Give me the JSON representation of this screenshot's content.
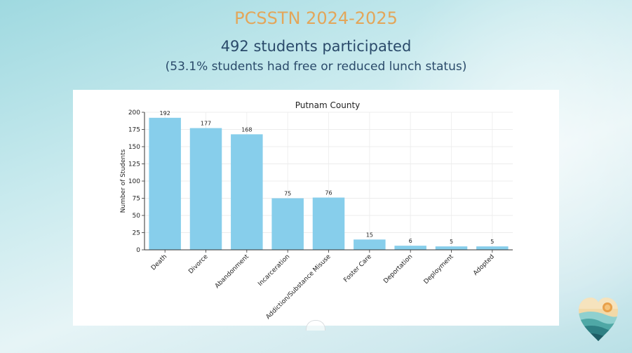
{
  "slide": {
    "deck_title": "PCSSTN 2024-2025",
    "headline": "492 students participated",
    "subline": "(53.1% students had free or reduced lunch status)"
  },
  "colors": {
    "title": "#e3a65a",
    "text": "#2a4a6a",
    "bar": "#87ceeb"
  },
  "icons": {
    "logo": "heart-landscape-logo-icon"
  },
  "chart_data": {
    "type": "bar",
    "title": "Putnam County",
    "xlabel": "",
    "ylabel": "Number of Students",
    "categories": [
      "Death",
      "Divorce",
      "Abandonment",
      "Incarceration",
      "Addiction/Substance Misuse",
      "Foster Care",
      "Deportation",
      "Deployment",
      "Adopted"
    ],
    "values": [
      192,
      177,
      168,
      75,
      76,
      15,
      6,
      5,
      5
    ],
    "ylim": [
      0,
      200
    ],
    "yticks": [
      0,
      25,
      50,
      75,
      100,
      125,
      150,
      175,
      200
    ],
    "grid": true,
    "legend": "none"
  }
}
